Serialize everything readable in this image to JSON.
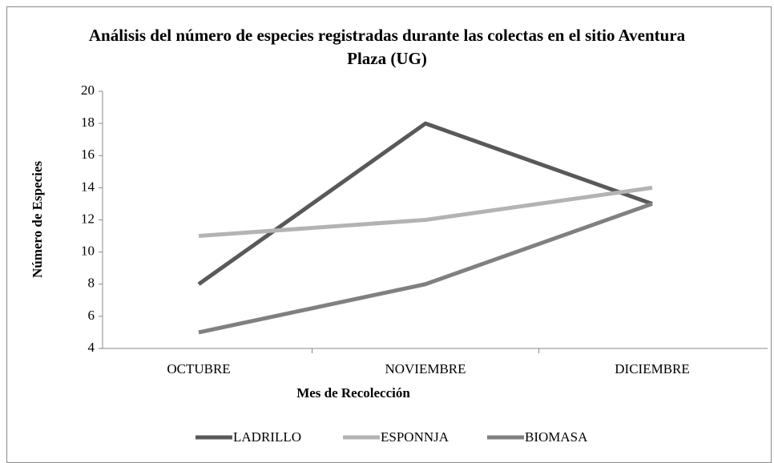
{
  "chart_data": {
    "type": "line",
    "title": "Análisis del número de especies registradas durante las colectas en el sitio Aventura Plaza (UG)",
    "x_label": "Mes de Recolección",
    "y_label": "Número de Especies",
    "categories": [
      "OCTUBRE",
      "NOVIEMBRE",
      "DICIEMBRE"
    ],
    "series": [
      {
        "name": "LADRILLO",
        "color": "#595959",
        "values": [
          8,
          18,
          13
        ]
      },
      {
        "name": "ESPONNJA",
        "color": "#b3b3b3",
        "values": [
          11,
          12,
          14
        ]
      },
      {
        "name": "BIOMASA",
        "color": "#808080",
        "values": [
          5,
          8,
          13
        ]
      }
    ],
    "ylim": [
      4,
      20
    ],
    "yticks": [
      4,
      6,
      8,
      10,
      12,
      14,
      16,
      18,
      20
    ],
    "grid": false,
    "legend": "bottom"
  }
}
